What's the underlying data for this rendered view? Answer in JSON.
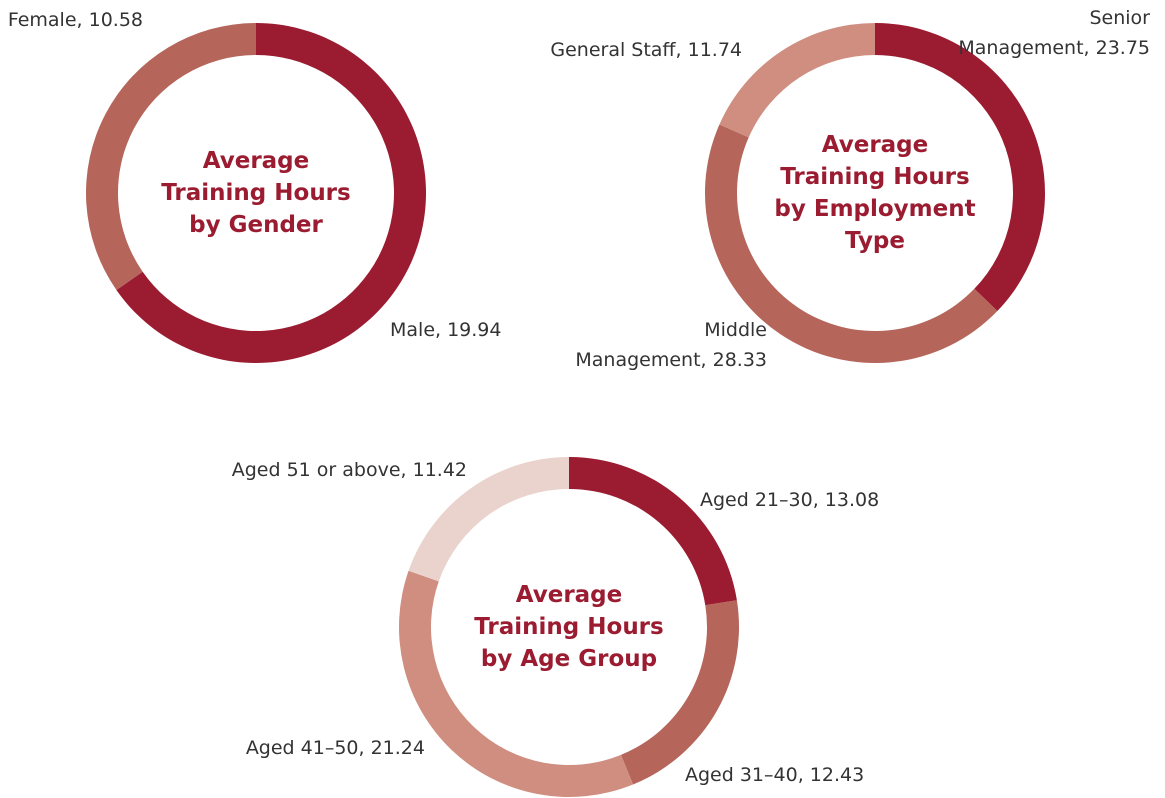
{
  "chart_data": [
    {
      "type": "donut",
      "title": "Average\nTraining Hours\nby Gender",
      "categories": [
        "Male",
        "Female"
      ],
      "values": [
        19.94,
        10.58
      ],
      "value_labels": [
        "Male, 19.94",
        "Female, 10.58"
      ],
      "colors": [
        "#9b1c31",
        "#b5655a"
      ]
    },
    {
      "type": "donut",
      "title": "Average\nTraining Hours\nby Employment\nType",
      "categories": [
        "Senior Management",
        "Middle Management",
        "General Staff"
      ],
      "values": [
        23.75,
        28.33,
        11.74
      ],
      "value_labels": [
        "Senior\nManagement, 23.75",
        "Middle\nManagement, 28.33",
        "General Staff, 11.74"
      ],
      "colors": [
        "#9b1c31",
        "#b5655a",
        "#cf8e80"
      ]
    },
    {
      "type": "donut",
      "title": "Average\nTraining Hours\nby Age Group",
      "categories": [
        "Aged 21–30",
        "Aged 31–40",
        "Aged 41–50",
        "Aged 51 or above"
      ],
      "values": [
        13.08,
        12.43,
        21.24,
        11.42
      ],
      "value_labels": [
        "Aged 21–30, 13.08",
        "Aged 31–40, 12.43",
        "Aged 41–50, 21.24",
        "Aged 51 or above, 11.42"
      ],
      "colors": [
        "#9b1c31",
        "#b5655a",
        "#cf8e80",
        "#ead3cc"
      ]
    }
  ]
}
